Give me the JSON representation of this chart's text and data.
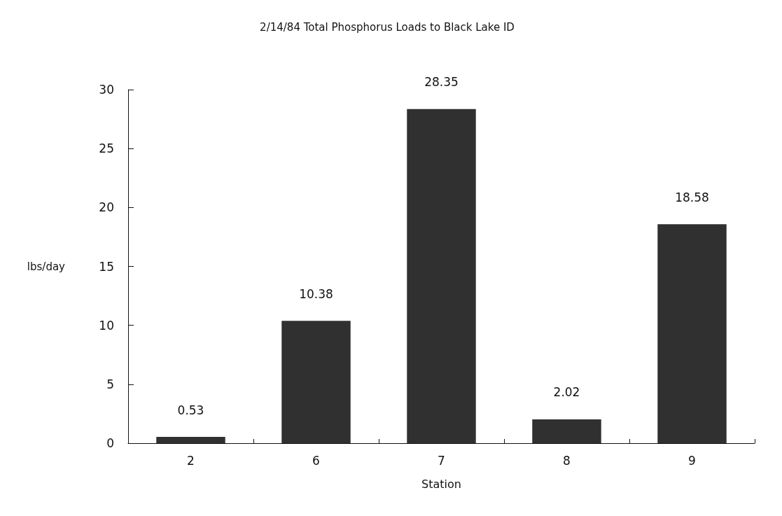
{
  "chart_data": {
    "type": "bar",
    "title": "2/14/84 Total Phosphorus Loads to Black Lake ID",
    "xlabel": "Station",
    "ylabel": "lbs/day",
    "categories": [
      "2",
      "6",
      "7",
      "8",
      "9"
    ],
    "values": [
      0.53,
      10.38,
      28.35,
      2.02,
      18.58
    ],
    "color": "#303030",
    "ylim": [
      0,
      30
    ],
    "yticks": [
      0,
      5,
      10,
      15,
      20,
      25,
      30
    ],
    "data_labels": true,
    "grid": false
  }
}
